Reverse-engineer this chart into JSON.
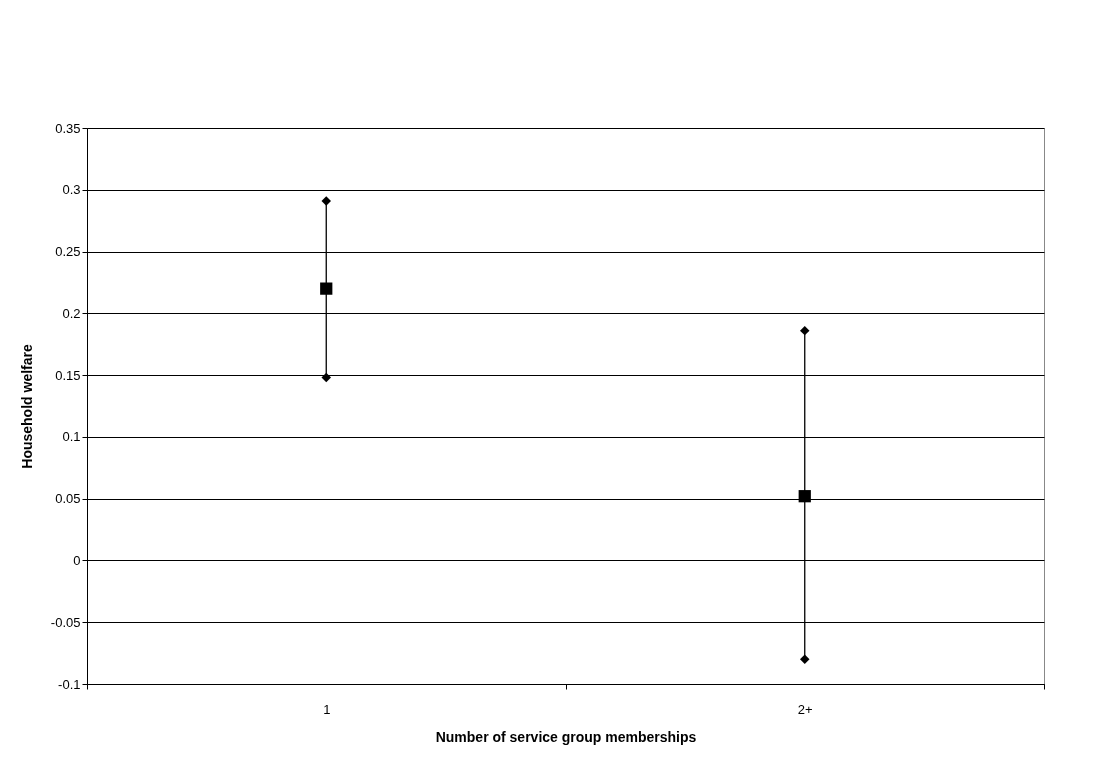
{
  "chart_data": {
    "type": "scatter",
    "xlabel": "Number of service group memberships",
    "ylabel": "Household welfare",
    "categories": [
      "1",
      "2+"
    ],
    "values": [
      0.22,
      0.052
    ],
    "errors": [
      [
        0.148,
        0.291
      ],
      [
        -0.08,
        0.186
      ]
    ],
    "color": "#000000",
    "marker": "square",
    "ylim": [
      -0.1,
      0.35
    ],
    "yticks": [
      -0.1,
      -0.05,
      0,
      0.05,
      0.1,
      0.15,
      0.2,
      0.25,
      0.3,
      0.35
    ],
    "grid": "y"
  }
}
